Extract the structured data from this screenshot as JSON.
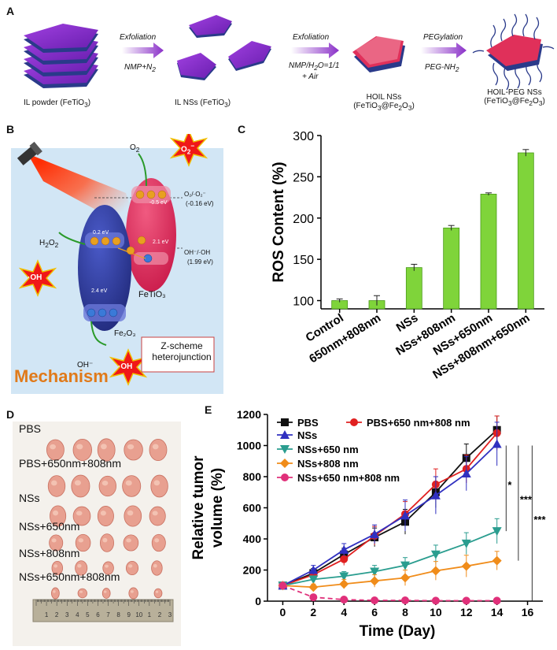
{
  "panels": {
    "a": "A",
    "b": "B",
    "c": "C",
    "d": "D",
    "e": "E"
  },
  "panel_a": {
    "steps": [
      {
        "top": "Exfoliation",
        "bottom_main": "NMP+N",
        "bottom_sub": "2"
      },
      {
        "top": "Exfoliation",
        "bottom_line1": "NMP/H",
        "sub2": "2",
        "bottom_line1_rest": "O=1/1",
        "bottom_line2": "+ Air"
      },
      {
        "top": "PEGylation",
        "bottom_main": "PEG-NH",
        "bottom_sub": "2"
      }
    ],
    "items": [
      {
        "name": "IL powder (FeTiO",
        "sub": "3",
        "close": ")"
      },
      {
        "name": "IL NSs (FeTiO",
        "sub": "3",
        "close": ")"
      },
      {
        "name": "HOIL NSs",
        "formula": "(FeTiO",
        "sub1": "3",
        "mid": "@Fe",
        "sub2": "2",
        "o": "O",
        "sub3": "3",
        "close": ")"
      },
      {
        "name": "HOIL-PEG NSs",
        "formula": "(FeTiO",
        "sub1": "3",
        "mid": "@Fe",
        "sub2": "2",
        "o": "O",
        "sub3": "3",
        "close": ")"
      }
    ]
  },
  "panel_b": {
    "o2": "O",
    "o2_sub": "2",
    "o2_radical": "O",
    "o2_radical_sub": "2",
    "o2_radical_sup": "−",
    "h2o2": "H",
    "h2o2_sub": "2",
    "h2o2_rest": "O",
    "h2o2_sub2": "2",
    "oh_radical": "·OH",
    "oh_minus": "OH⁻",
    "oh_radical2": "·OH",
    "redox1": "O₂/·O₂⁻",
    "redox1_val": "(-0.16 eV)",
    "redox2": "OH⁻/·OH",
    "redox2_val": "(1.99 eV)",
    "ev_05": "-0.5 eV",
    "ev_02": "0.2 eV",
    "ev_21": "2.1 eV",
    "ev_24": "2.4 eV",
    "fetio3": "FeTiO₃",
    "fe2o3": "Fe₂O₃",
    "electron": "e",
    "hole": "h⁺",
    "zscheme1": "Z-scheme",
    "zscheme2": "heterojunction",
    "mechanism": "Mechanism",
    "colors": {
      "bg": "#d2e6f5",
      "red_ellipse": "#e8285a",
      "blue_ellipse": "#2f3b9e",
      "mechanism": "#e07a1a"
    }
  },
  "panel_d": {
    "groups": [
      "PBS",
      "PBS+650nm+808nm",
      "NSs",
      "NSs+650nm",
      "NSs+808nm",
      "NSs+650nm+808nm"
    ],
    "ruler_ticks": [
      "1",
      "2",
      "3",
      "4",
      "5",
      "6",
      "7",
      "8",
      "9",
      "10",
      "1",
      "2",
      "3"
    ],
    "tumor_scale": [
      1.0,
      0.98,
      0.92,
      0.78,
      0.62,
      0.45
    ]
  },
  "chart_data": [
    {
      "type": "bar",
      "title": "",
      "xlabel": "",
      "ylabel": "ROS Content (%)",
      "ylim": [
        90,
        300
      ],
      "yticks": [
        "100",
        "150",
        "200",
        "250",
        "300"
      ],
      "categories": [
        "Control",
        "650nm+808nm",
        "NSs",
        "NSs+808nm",
        "NSs+650nm",
        "NSs+808nm+650nm"
      ],
      "values": [
        100,
        100,
        140,
        188,
        229,
        279
      ],
      "errors": [
        2,
        6,
        4,
        3,
        1.5,
        4
      ],
      "bar_color": "#7fd43a"
    },
    {
      "type": "line",
      "title": "",
      "xlabel": "Time (Day)",
      "ylabel": "Relative tumor volume (%)",
      "ylabel_line1": "Relative tumor",
      "ylabel_line2": "volume (%)",
      "xlim": [
        -1,
        17
      ],
      "ylim": [
        0,
        1200
      ],
      "xticks": [
        "0",
        "2",
        "4",
        "6",
        "8",
        "10",
        "12",
        "14",
        "16"
      ],
      "yticks": [
        "0",
        "200",
        "400",
        "600",
        "800",
        "1000",
        "1200"
      ],
      "x": [
        0,
        2,
        4,
        6,
        8,
        10,
        12,
        14
      ],
      "series": [
        {
          "name": "PBS",
          "color": "#111111",
          "marker": "square",
          "values": [
            100,
            180,
            300,
            410,
            510,
            700,
            920,
            1100
          ],
          "err": [
            20,
            30,
            40,
            60,
            80,
            100,
            90,
            90
          ]
        },
        {
          "name": "PBS+650 nm+808 nm",
          "color": "#e02020",
          "marker": "circle",
          "values": [
            100,
            170,
            270,
            420,
            560,
            750,
            850,
            1080
          ],
          "err": [
            20,
            30,
            40,
            60,
            80,
            100,
            90,
            110
          ]
        },
        {
          "name": "NSs",
          "color": "#3030c0",
          "marker": "triangle",
          "values": [
            100,
            200,
            330,
            430,
            550,
            680,
            820,
            1010
          ],
          "err": [
            20,
            30,
            40,
            60,
            100,
            120,
            110,
            140
          ]
        },
        {
          "name": "NSs+650 nm",
          "color": "#2a9d8f",
          "marker": "triangle-down",
          "values": [
            100,
            140,
            160,
            190,
            230,
            300,
            370,
            450
          ],
          "err": [
            15,
            20,
            30,
            40,
            50,
            60,
            70,
            80
          ]
        },
        {
          "name": "NSs+808 nm",
          "color": "#f08c1a",
          "marker": "diamond",
          "values": [
            100,
            90,
            110,
            130,
            150,
            195,
            225,
            260
          ],
          "err": [
            15,
            20,
            30,
            40,
            50,
            60,
            70,
            60
          ]
        },
        {
          "name": "NSs+650 nm+808 nm",
          "color": "#e0307a",
          "marker": "circle",
          "values": [
            100,
            25,
            10,
            5,
            5,
            3,
            3,
            3
          ],
          "err": [
            15,
            10,
            5,
            3,
            2,
            2,
            2,
            2
          ]
        }
      ],
      "significance": [
        "*",
        "***",
        "***"
      ]
    }
  ]
}
